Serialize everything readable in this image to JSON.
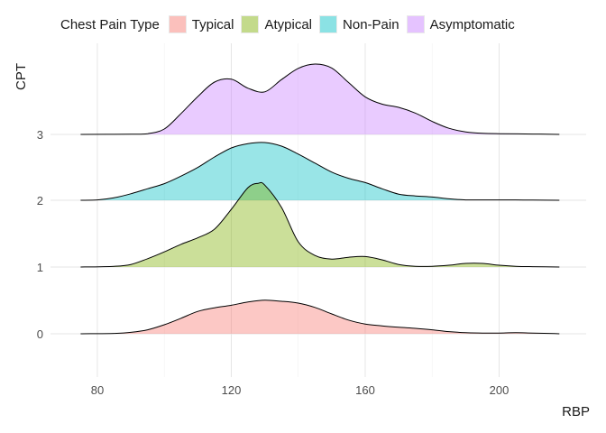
{
  "chart_data": {
    "type": "ridgeline",
    "title": "",
    "xlabel": "RBP",
    "ylabel": "CPT",
    "xlim": [
      66,
      226
    ],
    "x_ticks": [
      80,
      120,
      160,
      200
    ],
    "grid": true,
    "legend": {
      "title": "Chest Pain Type",
      "placement": "top",
      "entries": [
        "Typical",
        "Atypical",
        "Non-Pain",
        "Asymptomatic"
      ]
    },
    "colors": {
      "Typical": "#F8766D",
      "Atypical": "#7CAE00",
      "Non-Pain": "#00BFC4",
      "Asymptomatic": "#C77CFF"
    },
    "series": [
      {
        "name": "Typical",
        "level": "0",
        "x": [
          75,
          85,
          90,
          95,
          100,
          105,
          110,
          115,
          120,
          125,
          130,
          135,
          140,
          145,
          150,
          155,
          160,
          165,
          170,
          175,
          180,
          185,
          190,
          195,
          200,
          205,
          210,
          215,
          218
        ],
        "density": [
          0,
          0.01,
          0.04,
          0.11,
          0.25,
          0.43,
          0.62,
          0.72,
          0.79,
          0.88,
          0.93,
          0.9,
          0.85,
          0.73,
          0.55,
          0.38,
          0.27,
          0.22,
          0.18,
          0.15,
          0.11,
          0.06,
          0.03,
          0.02,
          0.02,
          0.03,
          0.02,
          0.01,
          0
        ]
      },
      {
        "name": "Atypical",
        "level": "1",
        "x": [
          75,
          85,
          90,
          95,
          100,
          105,
          110,
          115,
          120,
          125,
          128,
          130,
          135,
          140,
          145,
          150,
          155,
          160,
          165,
          170,
          175,
          180,
          185,
          190,
          195,
          200,
          205,
          210,
          218
        ],
        "density": [
          0,
          0.02,
          0.07,
          0.23,
          0.42,
          0.63,
          0.81,
          1.05,
          1.6,
          2.2,
          2.32,
          2.27,
          1.65,
          0.7,
          0.32,
          0.22,
          0.27,
          0.29,
          0.2,
          0.07,
          0.02,
          0.02,
          0.05,
          0.1,
          0.1,
          0.05,
          0.02,
          0.01,
          0
        ]
      },
      {
        "name": "Non-Pain",
        "level": "2",
        "x": [
          75,
          80,
          85,
          90,
          95,
          100,
          105,
          110,
          115,
          120,
          125,
          130,
          135,
          140,
          145,
          150,
          155,
          160,
          165,
          170,
          175,
          180,
          185,
          190,
          195,
          200,
          205,
          210,
          218
        ],
        "density": [
          0,
          0.01,
          0.07,
          0.18,
          0.32,
          0.46,
          0.67,
          0.91,
          1.2,
          1.45,
          1.57,
          1.6,
          1.5,
          1.28,
          1.03,
          0.78,
          0.61,
          0.49,
          0.32,
          0.17,
          0.12,
          0.09,
          0.04,
          0.01,
          0.01,
          0.01,
          0.01,
          0.005,
          0
        ]
      },
      {
        "name": "Asymptomatic",
        "level": "3",
        "x": [
          75,
          90,
          95,
          100,
          105,
          110,
          115,
          120,
          125,
          130,
          135,
          140,
          145,
          150,
          155,
          160,
          165,
          170,
          175,
          180,
          185,
          190,
          195,
          200,
          210,
          218
        ],
        "density": [
          0,
          0.005,
          0.02,
          0.15,
          0.58,
          1.05,
          1.45,
          1.53,
          1.28,
          1.18,
          1.52,
          1.83,
          1.95,
          1.84,
          1.44,
          1.04,
          0.84,
          0.75,
          0.59,
          0.36,
          0.17,
          0.07,
          0.03,
          0.02,
          0.01,
          0
        ]
      }
    ]
  }
}
